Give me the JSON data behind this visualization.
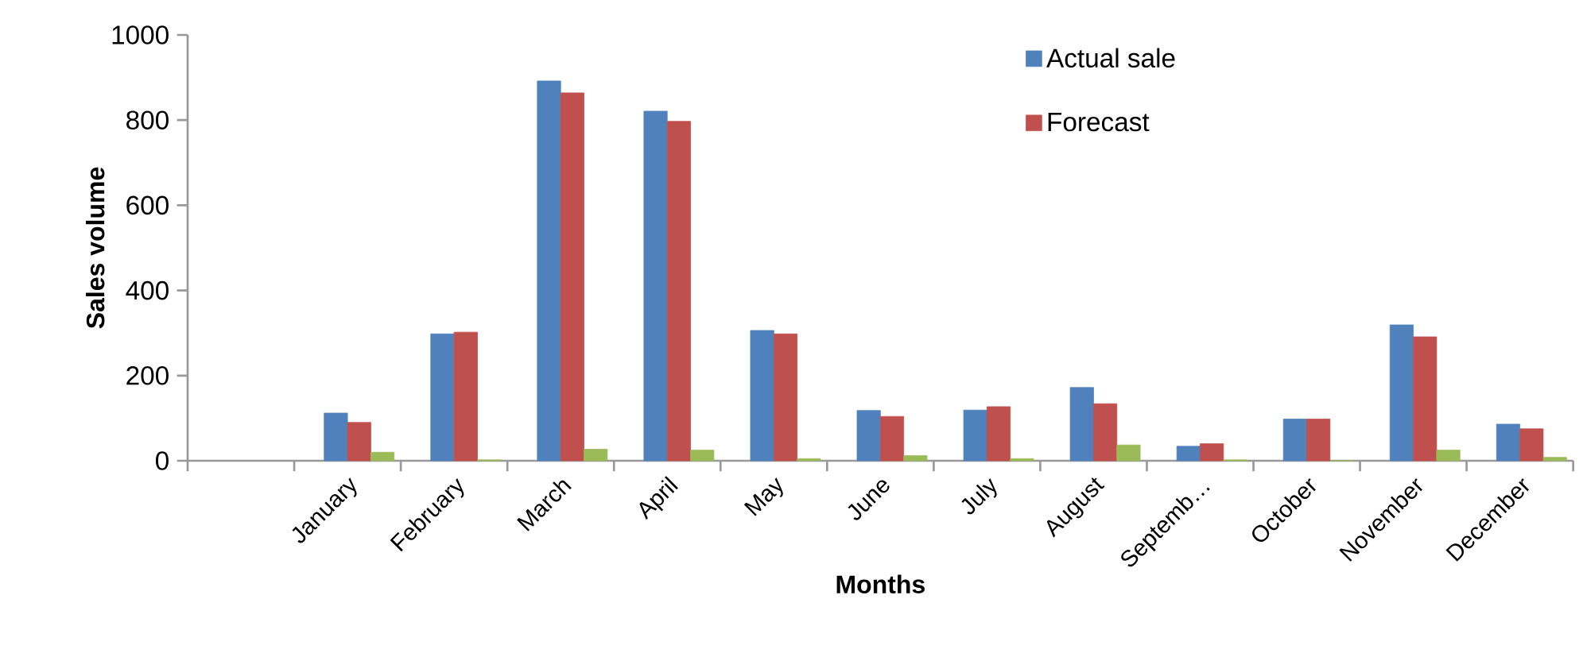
{
  "chart_data": {
    "type": "bar",
    "xlabel": "Months",
    "ylabel": "Sales volume",
    "categories": [
      null,
      "January",
      "February",
      "March",
      "April",
      "May",
      "June",
      "July",
      "August",
      "Septemb…",
      "October",
      "November",
      "December"
    ],
    "series": [
      {
        "name": "Actual sale",
        "color": "#4f81bd",
        "values": [
          null,
          112,
          298,
          892,
          821,
          306,
          118,
          119,
          172,
          34,
          98,
          319,
          86
        ]
      },
      {
        "name": "Forecast",
        "color": "#c0504d",
        "values": [
          null,
          90,
          302,
          864,
          797,
          298,
          104,
          127,
          134,
          40,
          98,
          291,
          75
        ]
      },
      {
        "color": "#9bbb59",
        "values": [
          null,
          20,
          2,
          27,
          25,
          5,
          12,
          5,
          37,
          2,
          0,
          25,
          8
        ]
      }
    ],
    "ylim": [
      0,
      1000
    ],
    "yticks": [
      0,
      200,
      400,
      600,
      800,
      1000
    ],
    "grid": false,
    "legend": "top right"
  }
}
